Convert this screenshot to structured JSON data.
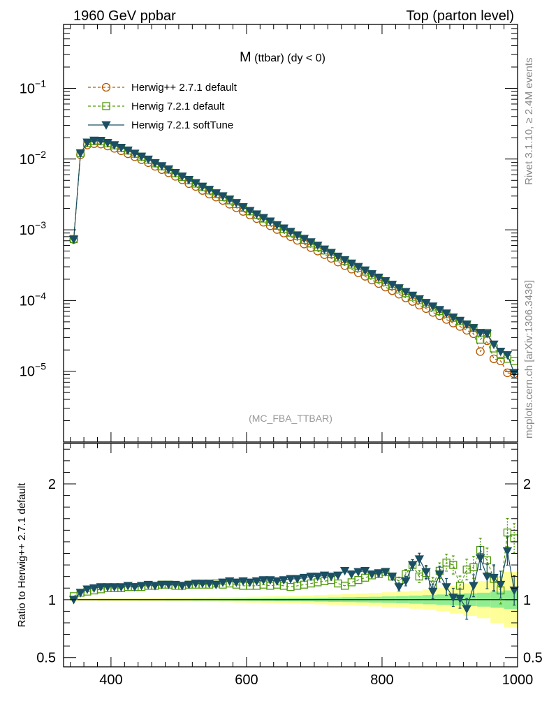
{
  "header": {
    "left": "1960 GeV ppbar",
    "right": "Top (parton level)"
  },
  "side_labels": {
    "rivet": "Rivet 3.1.10, ≥ 2.4M events",
    "source": "mcplots.cern.ch [arXiv:1306.3436]"
  },
  "plot_title": {
    "main": "M",
    "sub": " (ttbar) (dy < 0)"
  },
  "watermark": "(MC_FBA_TTBAR)",
  "colors": {
    "herwigpp": "#b35900",
    "herwig721": "#4e9a06",
    "softtune": "#1b4f63",
    "band_inner": "#90ee90",
    "band_outer": "#ffff99"
  },
  "chart_data": [
    {
      "type": "line",
      "panel": "main",
      "yscale": "log",
      "xlim": [
        330,
        1000
      ],
      "ylim": [
        1e-06,
        0.8
      ],
      "y_ticks": [
        "10^{-1}",
        "10^{-2}",
        "10^{-3}",
        "10^{-4}",
        "10^{-5}"
      ],
      "legend_position": "top-left",
      "series": [
        {
          "name": "Herwig++ 2.7.1 default",
          "marker": "open-circle",
          "line": "dashed",
          "x": [
            345,
            355,
            365,
            375,
            385,
            395,
            405,
            415,
            425,
            435,
            445,
            455,
            465,
            475,
            485,
            495,
            505,
            515,
            525,
            535,
            545,
            555,
            565,
            575,
            585,
            595,
            605,
            615,
            625,
            635,
            645,
            655,
            665,
            675,
            685,
            695,
            705,
            715,
            725,
            735,
            745,
            755,
            765,
            775,
            785,
            795,
            805,
            815,
            825,
            835,
            845,
            855,
            865,
            875,
            885,
            895,
            905,
            915,
            925,
            935,
            945,
            955,
            965,
            975,
            985,
            995
          ],
          "y": [
            0.00073,
            0.0115,
            0.0158,
            0.0165,
            0.0163,
            0.0153,
            0.0142,
            0.0131,
            0.0119,
            0.0108,
            0.0098,
            0.0089,
            0.0079,
            0.0071,
            0.0064,
            0.0057,
            0.0051,
            0.0045,
            0.0041,
            0.0036,
            0.0032,
            0.0029,
            0.0026,
            0.0023,
            0.00205,
            0.00182,
            0.00162,
            0.00144,
            0.00128,
            0.00114,
            0.00101,
            0.0009,
            0.0008,
            0.00071,
            0.00063,
            0.00056,
            0.0005,
            0.000445,
            0.000395,
            0.00035,
            0.000312,
            0.000278,
            0.000247,
            0.00022,
            0.000195,
            0.000174,
            0.000155,
            0.000138,
            0.000123,
            0.000109,
            9.7e-05,
            8.6e-05,
            7.7e-05,
            6.8e-05,
            6.1e-05,
            5.4e-05,
            4.8e-05,
            4.3e-05,
            3.8e-05,
            3.4e-05,
            1.9e-05,
            2.7e-05,
            1.5e-05,
            1.4e-05,
            9.5e-06,
            9.2e-06
          ]
        },
        {
          "name": "Herwig 7.2.1 default",
          "marker": "open-square",
          "line": "dashed",
          "x": [
            345,
            355,
            365,
            375,
            385,
            395,
            405,
            415,
            425,
            435,
            445,
            455,
            465,
            475,
            485,
            495,
            505,
            515,
            525,
            535,
            545,
            555,
            565,
            575,
            585,
            595,
            605,
            615,
            625,
            635,
            645,
            655,
            665,
            675,
            685,
            695,
            705,
            715,
            725,
            735,
            745,
            755,
            765,
            775,
            785,
            795,
            805,
            815,
            825,
            835,
            845,
            855,
            865,
            875,
            885,
            895,
            905,
            915,
            925,
            935,
            945,
            955,
            965,
            975,
            985,
            995
          ],
          "y": [
            0.00074,
            0.0121,
            0.0168,
            0.0179,
            0.0178,
            0.0167,
            0.0156,
            0.0144,
            0.0132,
            0.0119,
            0.0108,
            0.0098,
            0.0087,
            0.0079,
            0.0071,
            0.0063,
            0.0056,
            0.005,
            0.0045,
            0.004,
            0.0036,
            0.0032,
            0.0029,
            0.0026,
            0.0023,
            0.00205,
            0.00182,
            0.00162,
            0.00144,
            0.00128,
            0.00114,
            0.00102,
            0.00091,
            0.00081,
            0.00072,
            0.00064,
            0.00057,
            0.00051,
            0.000455,
            0.000405,
            0.000362,
            0.000322,
            0.000287,
            0.000256,
            0.000228,
            0.000203,
            0.000181,
            0.000161,
            0.000143,
            0.000127,
            0.000113,
            0.000101,
            9e-05,
            8e-05,
            7.1e-05,
            6.4e-05,
            5.7e-05,
            5.1e-05,
            4.6e-05,
            4.1e-05,
            2.8e-05,
            3.5e-05,
            2.1e-05,
            1.7e-05,
            1.5e-05,
            1.4e-05
          ]
        },
        {
          "name": "Herwig 7.2.1 softTune",
          "marker": "filled-triangle-down",
          "line": "solid",
          "x": [
            345,
            355,
            365,
            375,
            385,
            395,
            405,
            415,
            425,
            435,
            445,
            455,
            465,
            475,
            485,
            495,
            505,
            515,
            525,
            535,
            545,
            555,
            565,
            575,
            585,
            595,
            605,
            615,
            625,
            635,
            645,
            655,
            665,
            675,
            685,
            695,
            705,
            715,
            725,
            735,
            745,
            755,
            765,
            775,
            785,
            795,
            805,
            815,
            825,
            835,
            845,
            855,
            865,
            875,
            885,
            895,
            905,
            915,
            925,
            935,
            945,
            955,
            965,
            975,
            985,
            995
          ],
          "y": [
            0.00073,
            0.0121,
            0.0172,
            0.0183,
            0.0182,
            0.017,
            0.0158,
            0.0145,
            0.0133,
            0.012,
            0.0109,
            0.0099,
            0.0088,
            0.008,
            0.0072,
            0.0064,
            0.0057,
            0.0051,
            0.0046,
            0.0041,
            0.0037,
            0.0033,
            0.003,
            0.0027,
            0.0024,
            0.0021,
            0.00186,
            0.00166,
            0.00148,
            0.00132,
            0.00117,
            0.00105,
            0.00094,
            0.00084,
            0.00075,
            0.00067,
            0.0006,
            0.00053,
            0.000475,
            0.00042,
            0.000375,
            0.000335,
            0.0003,
            0.000268,
            0.000238,
            0.000212,
            0.000189,
            0.000168,
            0.00015,
            0.000133,
            0.000118,
            0.000105,
            9.3e-05,
            8.3e-05,
            7.4e-05,
            6.6e-05,
            5.8e-05,
            5.2e-05,
            4.6e-05,
            4.1e-05,
            3.5e-05,
            3.4e-05,
            2.4e-05,
            1.9e-05,
            1.7e-05,
            9.5e-06
          ]
        }
      ]
    },
    {
      "type": "line",
      "panel": "ratio",
      "xlim": [
        330,
        1000
      ],
      "ylim": [
        0.42,
        2.35
      ],
      "x_ticks": [
        "400",
        "600",
        "800",
        "1000"
      ],
      "y_ticks": [
        "0.5",
        "1",
        "2"
      ],
      "ylabel": "Ratio to Herwig++ 2.7.1 default",
      "reference": 1.0,
      "bands": {
        "x_edges": [
          340,
          360,
          380,
          400,
          420,
          440,
          460,
          480,
          500,
          520,
          540,
          560,
          580,
          600,
          620,
          640,
          660,
          680,
          700,
          720,
          740,
          760,
          780,
          800,
          820,
          840,
          860,
          880,
          900,
          920,
          940,
          960,
          980,
          1000
        ],
        "inner_half_width": [
          0.004,
          0.004,
          0.005,
          0.005,
          0.005,
          0.006,
          0.006,
          0.007,
          0.007,
          0.008,
          0.008,
          0.009,
          0.01,
          0.011,
          0.012,
          0.013,
          0.014,
          0.015,
          0.017,
          0.019,
          0.021,
          0.023,
          0.025,
          0.028,
          0.031,
          0.035,
          0.04,
          0.045,
          0.05,
          0.055,
          0.06,
          0.07,
          0.08
        ],
        "outer_half_width": [
          0.01,
          0.01,
          0.012,
          0.012,
          0.013,
          0.014,
          0.015,
          0.016,
          0.017,
          0.018,
          0.02,
          0.022,
          0.024,
          0.026,
          0.028,
          0.03,
          0.033,
          0.036,
          0.04,
          0.044,
          0.048,
          0.053,
          0.058,
          0.064,
          0.07,
          0.078,
          0.088,
          0.1,
          0.12,
          0.14,
          0.16,
          0.2,
          0.24
        ]
      },
      "series": [
        {
          "name": "Herwig 7.2.1 default",
          "marker": "open-square",
          "line": "dashed",
          "x": [
            345,
            355,
            365,
            375,
            385,
            395,
            405,
            415,
            425,
            435,
            445,
            455,
            465,
            475,
            485,
            495,
            505,
            515,
            525,
            535,
            545,
            555,
            565,
            575,
            585,
            595,
            605,
            615,
            625,
            635,
            645,
            655,
            665,
            675,
            685,
            695,
            705,
            715,
            725,
            735,
            745,
            755,
            765,
            775,
            785,
            795,
            805,
            815,
            825,
            835,
            845,
            855,
            865,
            875,
            885,
            895,
            905,
            915,
            925,
            935,
            945,
            955,
            965,
            975,
            985,
            995
          ],
          "y": [
            1.03,
            1.06,
            1.07,
            1.08,
            1.09,
            1.1,
            1.1,
            1.1,
            1.11,
            1.11,
            1.11,
            1.12,
            1.12,
            1.13,
            1.13,
            1.12,
            1.12,
            1.13,
            1.13,
            1.13,
            1.13,
            1.14,
            1.13,
            1.14,
            1.13,
            1.12,
            1.12,
            1.12,
            1.13,
            1.12,
            1.13,
            1.12,
            1.11,
            1.12,
            1.13,
            1.14,
            1.15,
            1.16,
            1.17,
            1.14,
            1.12,
            1.15,
            1.17,
            1.19,
            1.21,
            1.22,
            1.24,
            1.2,
            1.16,
            1.22,
            1.3,
            1.2,
            1.23,
            1.13,
            1.25,
            1.32,
            1.3,
            1.12,
            1.26,
            1.28,
            1.43,
            1.34,
            1.18,
            1.08,
            1.58,
            1.53
          ]
        },
        {
          "name": "Herwig 7.2.1 softTune",
          "marker": "filled-triangle-down",
          "line": "solid",
          "x": [
            345,
            355,
            365,
            375,
            385,
            395,
            405,
            415,
            425,
            435,
            445,
            455,
            465,
            475,
            485,
            495,
            505,
            515,
            525,
            535,
            545,
            555,
            565,
            575,
            585,
            595,
            605,
            615,
            625,
            635,
            645,
            655,
            665,
            675,
            685,
            695,
            705,
            715,
            725,
            735,
            745,
            755,
            765,
            775,
            785,
            795,
            805,
            815,
            825,
            835,
            845,
            855,
            865,
            875,
            885,
            895,
            905,
            915,
            925,
            935,
            945,
            955,
            965,
            975,
            985,
            995
          ],
          "y": [
            1.0,
            1.06,
            1.09,
            1.1,
            1.11,
            1.11,
            1.11,
            1.11,
            1.12,
            1.11,
            1.12,
            1.13,
            1.12,
            1.13,
            1.13,
            1.13,
            1.12,
            1.13,
            1.14,
            1.14,
            1.14,
            1.13,
            1.15,
            1.16,
            1.15,
            1.16,
            1.15,
            1.16,
            1.17,
            1.17,
            1.16,
            1.17,
            1.18,
            1.18,
            1.19,
            1.2,
            1.2,
            1.21,
            1.2,
            1.21,
            1.25,
            1.22,
            1.24,
            1.25,
            1.22,
            1.23,
            1.24,
            1.2,
            1.11,
            1.16,
            1.3,
            1.35,
            1.24,
            1.07,
            1.22,
            1.11,
            1.02,
            1.01,
            0.92,
            1.12,
            1.36,
            1.2,
            1.19,
            1.13,
            1.42,
            1.08
          ]
        }
      ]
    }
  ]
}
